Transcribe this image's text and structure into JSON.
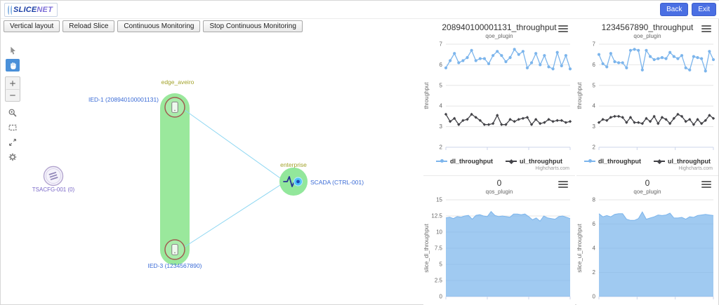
{
  "header": {
    "logo_part1": "SLICE",
    "logo_part2": "NET",
    "back_label": "Back",
    "exit_label": "Exit"
  },
  "toolbar": {
    "buttons": [
      "Vertical layout",
      "Reload Slice",
      "Continuous Monitoring",
      "Stop Continuous Monitoring"
    ]
  },
  "palette": {
    "tools": [
      "select-tool",
      "pan-tool",
      "zoom-in",
      "zoom-out",
      "zoom-select",
      "fit-view",
      "fullscreen",
      "settings"
    ],
    "active_tool": "pan-tool"
  },
  "topology": {
    "zone_edge_label": "edge_aveiro",
    "zone_enterprise_label": "enterprise",
    "ied1_label": "IED-1 (208940100001131)",
    "ied3_label": "IED-3 (1234567890)",
    "scada_label": "SCADA (CTRL-001)",
    "tsacfg_label": "TSACFG-001 (0)"
  },
  "colors": {
    "accent_blue": "#4a6fe3",
    "series_blue": "#7cb5ec",
    "series_black": "#434348",
    "capsule_green": "#9ae89c",
    "node_ring_brown": "#a15c52",
    "node_label_blue": "#3a6bd6",
    "zone_label_olive": "#a3a32c",
    "edge_line_blue": "#8ed7f2",
    "tsacfg_purple": "#7a68c8"
  },
  "chart_data": [
    {
      "type": "line",
      "title": "208940100001131_throughput",
      "subtitle": "qoe_plugin",
      "ylabel": "throughput",
      "ylim": [
        2,
        7
      ],
      "yticks": [
        2,
        3,
        4,
        5,
        6,
        7
      ],
      "grid": true,
      "legend_position": "bottom",
      "credit": "Highcharts.com",
      "series": [
        {
          "name": "dl_throughput",
          "color": "#7cb5ec",
          "marker": "circle",
          "values": [
            5.85,
            6.2,
            6.55,
            6.1,
            6.2,
            6.35,
            6.7,
            6.2,
            6.3,
            6.3,
            6.05,
            6.45,
            6.65,
            6.45,
            6.15,
            6.35,
            6.75,
            6.5,
            6.65,
            5.85,
            6.1,
            6.55,
            6.0,
            6.45,
            5.9,
            5.8,
            6.6,
            5.95,
            6.45,
            5.8
          ]
        },
        {
          "name": "ul_throughput",
          "color": "#434348",
          "marker": "diamond",
          "values": [
            3.6,
            3.25,
            3.4,
            3.1,
            3.3,
            3.35,
            3.6,
            3.45,
            3.3,
            3.1,
            3.1,
            3.15,
            3.55,
            3.1,
            3.1,
            3.35,
            3.25,
            3.35,
            3.4,
            3.45,
            3.1,
            3.35,
            3.15,
            3.2,
            3.35,
            3.25,
            3.3,
            3.3,
            3.2,
            3.25
          ]
        }
      ]
    },
    {
      "type": "line",
      "title": "1234567890_throughput",
      "subtitle": "qoe_plugin",
      "ylabel": "throughput",
      "ylim": [
        2,
        7
      ],
      "yticks": [
        2,
        3,
        4,
        5,
        6,
        7
      ],
      "grid": true,
      "legend_position": "bottom",
      "credit": "Highcharts.com",
      "series": [
        {
          "name": "dl_throughput",
          "color": "#7cb5ec",
          "marker": "circle",
          "values": [
            6.5,
            6.05,
            5.9,
            6.55,
            6.15,
            6.1,
            6.1,
            5.85,
            6.7,
            6.75,
            6.7,
            5.75,
            6.7,
            6.4,
            6.25,
            6.3,
            6.35,
            6.3,
            6.6,
            6.4,
            6.3,
            6.45,
            5.85,
            5.75,
            6.4,
            6.35,
            6.3,
            5.7,
            6.65,
            6.25
          ]
        },
        {
          "name": "ul_throughput",
          "color": "#434348",
          "marker": "diamond",
          "values": [
            3.2,
            3.35,
            3.3,
            3.45,
            3.5,
            3.5,
            3.45,
            3.2,
            3.45,
            3.2,
            3.2,
            3.15,
            3.4,
            3.25,
            3.5,
            3.15,
            3.45,
            3.35,
            3.15,
            3.4,
            3.6,
            3.5,
            3.25,
            3.35,
            3.1,
            3.35,
            3.15,
            3.3,
            3.55,
            3.4
          ]
        }
      ]
    },
    {
      "type": "area",
      "title": "0",
      "subtitle": "qos_plugin",
      "ylabel": "slice_dl_throughput",
      "ylim": [
        0,
        15
      ],
      "yticks": [
        0,
        2.5,
        5,
        7.5,
        10,
        12.5,
        15
      ],
      "grid": true,
      "series": [
        {
          "name": "slice_dl_throughput",
          "color": "#7cb5ec",
          "marker": "none",
          "values": [
            12.2,
            12.3,
            12.1,
            12.4,
            12.3,
            12.5,
            12.6,
            12.0,
            12.6,
            12.7,
            12.5,
            12.4,
            13.2,
            12.6,
            12.4,
            12.5,
            12.4,
            12.3,
            12.8,
            12.8,
            12.7,
            12.8,
            12.4,
            11.9,
            12.2,
            11.7,
            12.5,
            12.2,
            12.1,
            12.0,
            12.4,
            12.5,
            12.3,
            12.1
          ]
        }
      ]
    },
    {
      "type": "area",
      "title": "0",
      "subtitle": "qoe_plugin",
      "ylabel": "slice_ul_throughput",
      "ylim": [
        0,
        8
      ],
      "yticks": [
        0,
        2,
        4,
        6,
        8
      ],
      "grid": true,
      "series": [
        {
          "name": "slice_ul_throughput",
          "color": "#7cb5ec",
          "marker": "none",
          "values": [
            6.85,
            6.6,
            6.7,
            6.6,
            6.8,
            6.85,
            6.85,
            6.4,
            6.3,
            6.3,
            6.45,
            7.0,
            6.4,
            6.5,
            6.6,
            6.75,
            6.7,
            6.75,
            6.9,
            6.5,
            6.5,
            6.55,
            6.4,
            6.6,
            6.55,
            6.7,
            6.75,
            6.8,
            6.75,
            6.7
          ]
        }
      ]
    }
  ]
}
